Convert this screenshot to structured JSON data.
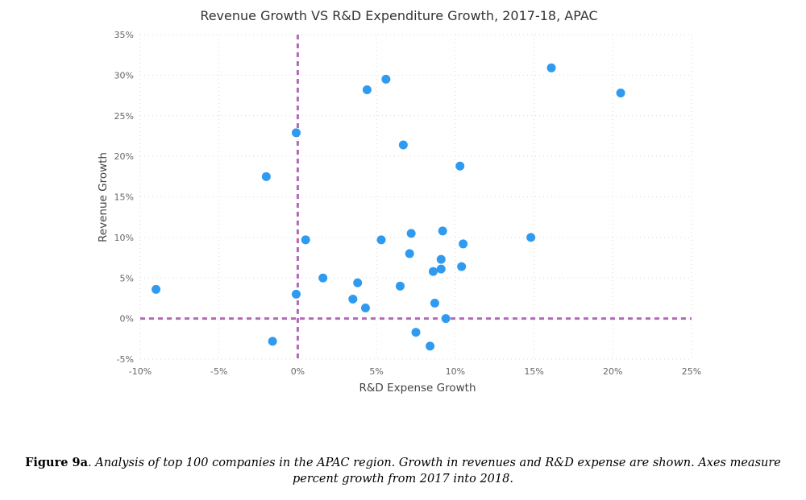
{
  "chart_data": {
    "type": "scatter",
    "title": "Revenue Growth VS R&D Expenditure Growth, 2017-18, APAC",
    "xlabel": "R&D Expense Growth",
    "ylabel": "Revenue Growth",
    "xlim": [
      -10,
      25
    ],
    "ylim": [
      -5,
      35
    ],
    "x_ticks": [
      -10,
      -5,
      0,
      5,
      10,
      15,
      20,
      25
    ],
    "x_tick_labels": [
      "-10%",
      "-5%",
      "0%",
      "5%",
      "10%",
      "15%",
      "20%",
      "25%"
    ],
    "y_ticks": [
      -5,
      0,
      5,
      10,
      15,
      20,
      25,
      30,
      35
    ],
    "y_tick_labels": [
      "-5%",
      "0%",
      "5%",
      "10%",
      "15%",
      "20%",
      "25%",
      "30%",
      "35%"
    ],
    "grid": true,
    "reference_lines": {
      "x": 0,
      "y": 0,
      "color": "#b36ab8"
    },
    "marker_color": "#2f9bf0",
    "points": [
      {
        "x": -9.0,
        "y": 3.6
      },
      {
        "x": -2.0,
        "y": 17.5
      },
      {
        "x": -1.6,
        "y": -2.8
      },
      {
        "x": -0.1,
        "y": 22.9
      },
      {
        "x": -0.1,
        "y": 3.0
      },
      {
        "x": 0.5,
        "y": 9.7
      },
      {
        "x": 1.6,
        "y": 5.0
      },
      {
        "x": 3.5,
        "y": 2.4
      },
      {
        "x": 3.8,
        "y": 4.4
      },
      {
        "x": 4.3,
        "y": 1.3
      },
      {
        "x": 4.4,
        "y": 28.2
      },
      {
        "x": 5.3,
        "y": 9.7
      },
      {
        "x": 5.6,
        "y": 29.5
      },
      {
        "x": 6.5,
        "y": 4.0
      },
      {
        "x": 6.7,
        "y": 21.4
      },
      {
        "x": 7.1,
        "y": 8.0
      },
      {
        "x": 7.2,
        "y": 10.5
      },
      {
        "x": 7.5,
        "y": -1.7
      },
      {
        "x": 8.4,
        "y": -3.4
      },
      {
        "x": 8.6,
        "y": 5.8
      },
      {
        "x": 8.7,
        "y": 1.9
      },
      {
        "x": 9.1,
        "y": 7.3
      },
      {
        "x": 9.1,
        "y": 6.1
      },
      {
        "x": 9.2,
        "y": 10.8
      },
      {
        "x": 9.4,
        "y": 0.0
      },
      {
        "x": 10.3,
        "y": 18.8
      },
      {
        "x": 10.4,
        "y": 6.4
      },
      {
        "x": 10.5,
        "y": 9.2
      },
      {
        "x": 14.8,
        "y": 10.0
      },
      {
        "x": 16.1,
        "y": 30.9
      },
      {
        "x": 20.5,
        "y": 27.8
      }
    ]
  },
  "caption": {
    "label": "Figure 9a",
    "text_line1": ". Analysis of top 100 companies in the APAC region. Growth in revenues and R&D expense are shown. Axes measure",
    "text_line2": "percent growth from 2017 into 2018."
  }
}
